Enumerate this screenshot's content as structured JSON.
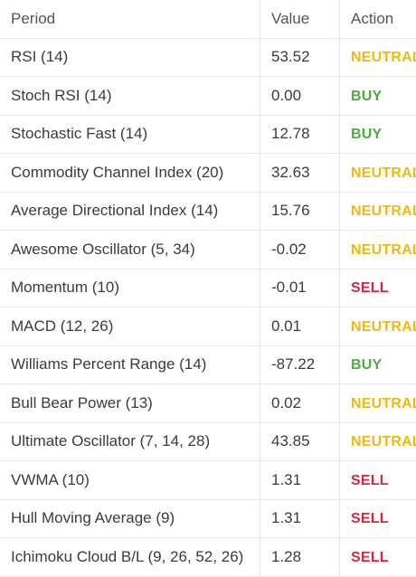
{
  "table": {
    "headers": {
      "period": "Period",
      "value": "Value",
      "action": "Action"
    },
    "rows": [
      {
        "period": "RSI (14)",
        "value": "53.52",
        "action": "NEUTRAL"
      },
      {
        "period": "Stoch RSI (14)",
        "value": "0.00",
        "action": "BUY"
      },
      {
        "period": "Stochastic Fast (14)",
        "value": "12.78",
        "action": "BUY"
      },
      {
        "period": "Commodity Channel Index (20)",
        "value": "32.63",
        "action": "NEUTRAL"
      },
      {
        "period": "Average Directional Index (14)",
        "value": "15.76",
        "action": "NEUTRAL"
      },
      {
        "period": "Awesome Oscillator (5, 34)",
        "value": "-0.02",
        "action": "NEUTRAL"
      },
      {
        "period": "Momentum (10)",
        "value": "-0.01",
        "action": "SELL"
      },
      {
        "period": "MACD (12, 26)",
        "value": "0.01",
        "action": "NEUTRAL"
      },
      {
        "period": "Williams Percent Range (14)",
        "value": "-87.22",
        "action": "BUY"
      },
      {
        "period": "Bull Bear Power (13)",
        "value": "0.02",
        "action": "NEUTRAL"
      },
      {
        "period": "Ultimate Oscillator (7, 14, 28)",
        "value": "43.85",
        "action": "NEUTRAL"
      },
      {
        "period": "VWMA (10)",
        "value": "1.31",
        "action": "SELL"
      },
      {
        "period": "Hull Moving Average (9)",
        "value": "1.31",
        "action": "SELL"
      },
      {
        "period": "Ichimoku Cloud B/L (9, 26, 52, 26)",
        "value": "1.28",
        "action": "SELL"
      }
    ]
  },
  "colors": {
    "neutral": "#f0b90b",
    "buy": "#4aae3b",
    "sell": "#d7263d",
    "border": "#e6e6e6"
  }
}
